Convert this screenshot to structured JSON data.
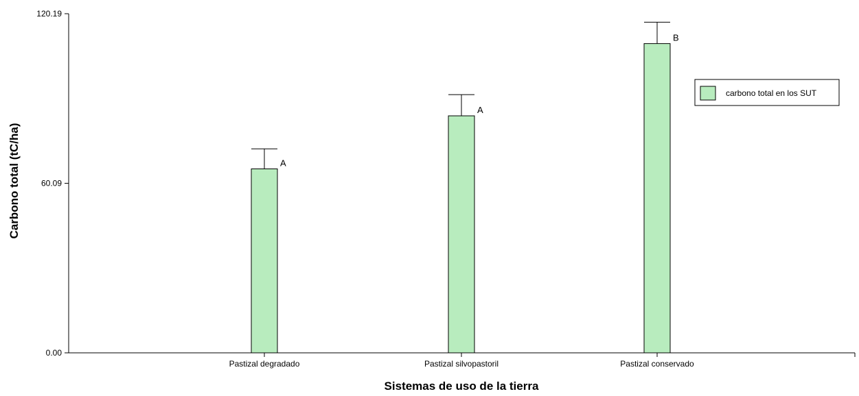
{
  "chart_data": {
    "type": "bar",
    "xlabel": "Sistemas de  uso de la tierra",
    "ylabel": "Carbono total (tC/ha)",
    "ylim": [
      0,
      120.19
    ],
    "y_ticks": [
      "0.00",
      "60.09",
      "120.19"
    ],
    "categories": [
      "Pastizal degradado",
      "Pastizal silvopastoril",
      "Pastizal conservado"
    ],
    "series": [
      {
        "name": "carbono total en los SUT",
        "values": [
          65.2,
          84.0,
          109.6
        ],
        "error_upper": [
          72.3,
          91.5,
          117.2
        ],
        "significance": [
          "A",
          "A",
          "B"
        ],
        "color": "#b8ecbe"
      }
    ],
    "legend_position": "top-right",
    "grid": false
  }
}
